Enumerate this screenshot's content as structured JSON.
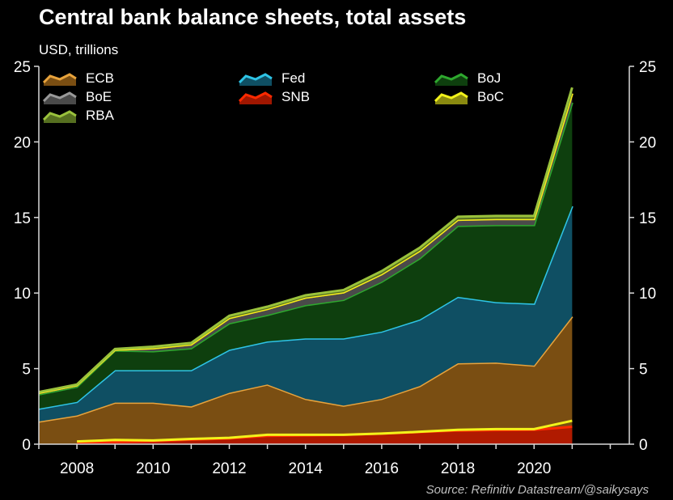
{
  "title": "Central bank balance sheets, total assets",
  "unit_label": "USD, trillions",
  "source": "Source: Refinitiv Datastream/@saikysays",
  "chart_data": {
    "type": "area",
    "stacked": true,
    "x": [
      2007,
      2008,
      2009,
      2010,
      2011,
      2012,
      2013,
      2014,
      2015,
      2016,
      2017,
      2018,
      2019,
      2020,
      2021
    ],
    "x_ticks": [
      "2008",
      "2010",
      "2012",
      "2014",
      "2016",
      "2018",
      "2020"
    ],
    "y_ticks": [
      "0",
      "5",
      "10",
      "15",
      "20",
      "25"
    ],
    "ylim": [
      0,
      25
    ],
    "xlim": [
      2007,
      2022.5
    ],
    "grid": false,
    "legend_position": "top-left",
    "series": [
      {
        "name": "ECB",
        "color": "#e8a33c",
        "fill": "#7a4e12",
        "values": [
          1.5,
          1.9,
          2.75,
          2.75,
          2.5,
          3.4,
          3.95,
          3.0,
          2.55,
          3.0,
          3.85,
          5.35,
          5.4,
          5.2,
          8.45
        ]
      },
      {
        "name": "Fed",
        "color": "#2ec4e6",
        "fill": "#0f4f63",
        "values": [
          0.85,
          0.9,
          2.15,
          2.15,
          2.4,
          2.85,
          2.85,
          4.0,
          4.45,
          4.45,
          4.4,
          4.4,
          4.0,
          4.1,
          7.3
        ]
      },
      {
        "name": "BoJ",
        "color": "#2ea82e",
        "fill": "#0e3f0e",
        "values": [
          0.95,
          1.0,
          1.3,
          1.25,
          1.45,
          1.75,
          1.75,
          2.2,
          2.55,
          3.3,
          4.05,
          4.7,
          5.1,
          5.2,
          6.85
        ]
      },
      {
        "name": "BoE",
        "color": "#9a9a9a",
        "fill": "#4a4a4a",
        "values": [
          0.1,
          0.1,
          0.05,
          0.2,
          0.25,
          0.35,
          0.4,
          0.5,
          0.5,
          0.5,
          0.5,
          0.4,
          0.4,
          0.4,
          0.6
        ]
      },
      {
        "name": "SNB",
        "color": "#ff2a00",
        "fill": "#a01600",
        "values": [
          0.0,
          0.0,
          0.0,
          0.0,
          0.0,
          0.0,
          0.0,
          0.0,
          0.0,
          0.0,
          0.0,
          0.0,
          0.0,
          0.0,
          0.0
        ]
      },
      {
        "name": "BoC",
        "color": "#f2f21a",
        "fill": "#8a8a10",
        "values": [
          0.0,
          0.0,
          0.0,
          0.0,
          0.0,
          0.0,
          0.0,
          0.0,
          0.0,
          0.0,
          0.0,
          0.0,
          0.0,
          0.0,
          0.0
        ]
      },
      {
        "name": "RBA",
        "color": "#9ac23c",
        "fill": "#566f20",
        "values": [
          0.05,
          0.05,
          0.05,
          0.1,
          0.1,
          0.15,
          0.15,
          0.15,
          0.15,
          0.2,
          0.2,
          0.2,
          0.2,
          0.2,
          0.4
        ]
      }
    ],
    "overlay_series": [
      {
        "name": "SNB",
        "color": "#ff2a00",
        "fill": "#b01a00",
        "x": [
          2008,
          2009,
          2010,
          2011,
          2012,
          2013,
          2014,
          2015,
          2016,
          2017,
          2018,
          2019,
          2020,
          2021
        ],
        "values": [
          0.12,
          0.15,
          0.2,
          0.3,
          0.38,
          0.55,
          0.58,
          0.62,
          0.7,
          0.8,
          0.9,
          0.93,
          0.95,
          1.15
        ]
      },
      {
        "name": "BoC",
        "color": "#f2f21a",
        "x": [
          2008,
          2009,
          2010,
          2011,
          2012,
          2013,
          2014,
          2015,
          2016,
          2017,
          2018,
          2019,
          2020,
          2021
        ],
        "values": [
          0.18,
          0.28,
          0.25,
          0.35,
          0.42,
          0.62,
          0.62,
          0.62,
          0.7,
          0.82,
          0.95,
          1.0,
          1.0,
          1.55
        ]
      }
    ]
  }
}
